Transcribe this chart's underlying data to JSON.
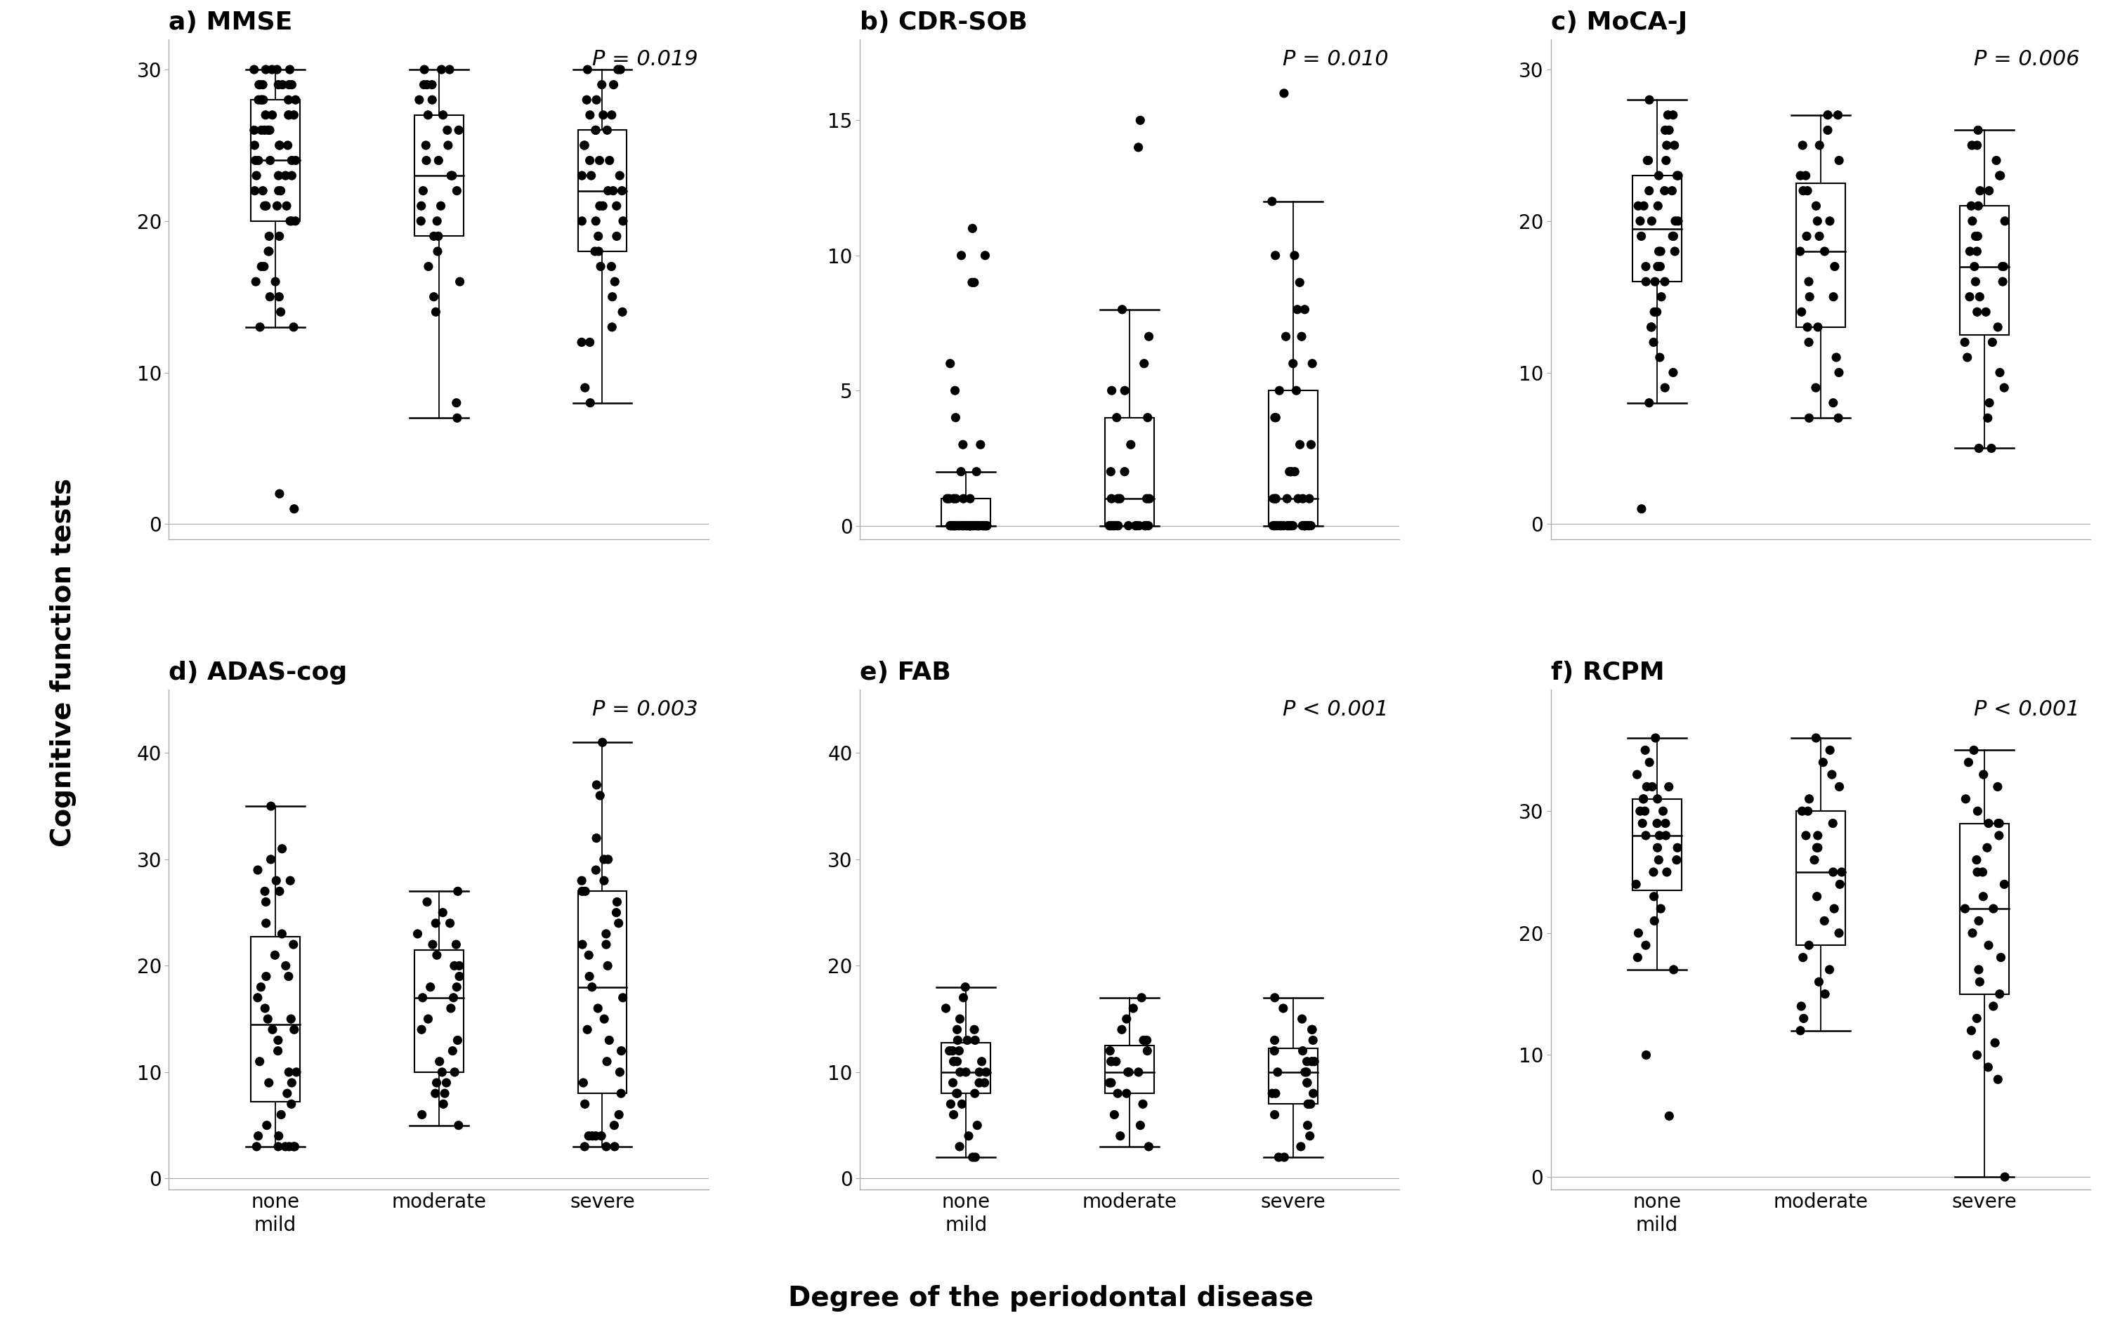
{
  "panels": [
    {
      "label": "a) MMSE",
      "pvalue": "P = 0.019",
      "ylim": [
        -1,
        32
      ],
      "yticks": [
        0,
        10,
        20,
        30
      ],
      "data_none_mild": [
        30,
        30,
        30,
        30,
        30,
        29,
        29,
        29,
        29,
        29,
        29,
        29,
        28,
        28,
        28,
        28,
        28,
        28,
        27,
        27,
        27,
        27,
        27,
        26,
        26,
        26,
        26,
        26,
        25,
        25,
        25,
        25,
        24,
        24,
        24,
        24,
        24,
        23,
        23,
        23,
        23,
        22,
        22,
        22,
        22,
        21,
        21,
        21,
        21,
        20,
        20,
        20,
        19,
        19,
        18,
        18,
        17,
        17,
        16,
        16,
        15,
        15,
        14,
        13,
        13,
        1,
        2
      ],
      "data_moderate": [
        30,
        30,
        30,
        29,
        29,
        29,
        28,
        28,
        27,
        27,
        26,
        26,
        25,
        25,
        24,
        24,
        23,
        23,
        22,
        22,
        21,
        21,
        20,
        20,
        19,
        19,
        18,
        17,
        16,
        15,
        14,
        8,
        7
      ],
      "data_severe": [
        30,
        30,
        30,
        29,
        29,
        28,
        28,
        27,
        27,
        27,
        26,
        26,
        26,
        25,
        25,
        24,
        24,
        24,
        23,
        23,
        23,
        22,
        22,
        22,
        21,
        21,
        21,
        20,
        20,
        20,
        19,
        19,
        18,
        18,
        17,
        17,
        16,
        15,
        14,
        13,
        12,
        12,
        9,
        8
      ]
    },
    {
      "label": "b) CDR-SOB",
      "pvalue": "P = 0.010",
      "ylim": [
        -0.5,
        18
      ],
      "yticks": [
        0,
        5,
        10,
        15
      ],
      "data_none_mild": [
        11,
        10,
        10,
        9,
        9,
        6,
        5,
        4,
        3,
        3,
        2,
        2,
        1,
        1,
        1,
        1,
        1,
        1,
        0,
        0,
        0,
        0,
        0,
        0,
        0,
        0,
        0,
        0,
        0,
        0,
        0,
        0,
        0,
        0,
        0,
        0,
        0,
        0,
        0,
        0,
        0,
        0,
        0,
        0,
        0,
        0,
        0,
        0,
        0,
        0,
        0,
        0,
        0,
        0,
        0,
        0,
        0,
        0,
        0,
        0
      ],
      "data_moderate": [
        15,
        14,
        8,
        7,
        6,
        5,
        5,
        4,
        4,
        3,
        2,
        2,
        1,
        1,
        1,
        1,
        1,
        0,
        0,
        0,
        0,
        0,
        0,
        0,
        0,
        0,
        0,
        0,
        0,
        0,
        0,
        0,
        0
      ],
      "data_severe": [
        16,
        12,
        10,
        10,
        9,
        8,
        8,
        7,
        7,
        6,
        6,
        5,
        5,
        4,
        4,
        3,
        3,
        2,
        2,
        2,
        2,
        1,
        1,
        1,
        1,
        1,
        1,
        1,
        0,
        0,
        0,
        0,
        0,
        0,
        0,
        0,
        0,
        0,
        0,
        0,
        0,
        0,
        0,
        0,
        0,
        0,
        0,
        0
      ]
    },
    {
      "label": "c) MoCA-J",
      "pvalue": "P = 0.006",
      "ylim": [
        -1,
        32
      ],
      "yticks": [
        0,
        10,
        20,
        30
      ],
      "data_none_mild": [
        28,
        27,
        27,
        26,
        26,
        25,
        25,
        24,
        24,
        24,
        23,
        23,
        23,
        22,
        22,
        22,
        21,
        21,
        21,
        20,
        20,
        20,
        20,
        19,
        19,
        19,
        18,
        18,
        18,
        17,
        17,
        17,
        16,
        16,
        16,
        15,
        14,
        14,
        13,
        13,
        12,
        11,
        10,
        9,
        8,
        1
      ],
      "data_moderate": [
        27,
        27,
        26,
        25,
        25,
        24,
        23,
        23,
        22,
        22,
        21,
        20,
        20,
        19,
        19,
        18,
        18,
        17,
        16,
        15,
        15,
        14,
        13,
        13,
        12,
        11,
        10,
        9,
        8,
        7,
        7
      ],
      "data_severe": [
        26,
        25,
        25,
        24,
        23,
        23,
        22,
        22,
        21,
        21,
        20,
        20,
        19,
        19,
        18,
        18,
        17,
        17,
        17,
        16,
        16,
        15,
        15,
        14,
        14,
        13,
        12,
        12,
        11,
        10,
        9,
        8,
        7,
        5,
        5
      ]
    },
    {
      "label": "d) ADAS-cog",
      "pvalue": "P = 0.003",
      "ylim": [
        -1,
        46
      ],
      "yticks": [
        0,
        10,
        20,
        30,
        40
      ],
      "data_none_mild": [
        35,
        31,
        30,
        29,
        28,
        28,
        27,
        27,
        26,
        24,
        23,
        22,
        21,
        20,
        19,
        19,
        18,
        17,
        16,
        15,
        15,
        14,
        14,
        13,
        12,
        11,
        10,
        10,
        9,
        9,
        8,
        7,
        6,
        5,
        4,
        4,
        3,
        3,
        3,
        3,
        3,
        3
      ],
      "data_moderate": [
        27,
        26,
        25,
        24,
        24,
        23,
        22,
        22,
        21,
        20,
        20,
        19,
        18,
        18,
        17,
        17,
        16,
        15,
        14,
        13,
        12,
        11,
        10,
        10,
        9,
        9,
        8,
        8,
        7,
        6,
        5
      ],
      "data_severe": [
        41,
        37,
        36,
        32,
        30,
        30,
        29,
        28,
        28,
        27,
        27,
        26,
        25,
        24,
        23,
        22,
        22,
        21,
        20,
        19,
        18,
        17,
        16,
        15,
        14,
        13,
        12,
        11,
        10,
        9,
        8,
        7,
        6,
        5,
        4,
        4,
        4,
        4,
        3,
        3,
        3
      ]
    },
    {
      "label": "e) FAB",
      "pvalue": "P < 0.001",
      "ylim": [
        -1,
        46
      ],
      "yticks": [
        0,
        10,
        20,
        30,
        40
      ],
      "data_none_mild": [
        18,
        17,
        16,
        15,
        14,
        14,
        13,
        13,
        13,
        12,
        12,
        12,
        11,
        11,
        11,
        11,
        10,
        10,
        10,
        10,
        9,
        9,
        9,
        8,
        8,
        8,
        7,
        7,
        6,
        5,
        4,
        3,
        2,
        2
      ],
      "data_moderate": [
        17,
        16,
        15,
        14,
        13,
        13,
        12,
        12,
        11,
        11,
        11,
        10,
        10,
        10,
        9,
        9,
        8,
        8,
        7,
        6,
        5,
        4,
        3
      ],
      "data_severe": [
        17,
        16,
        15,
        14,
        14,
        13,
        13,
        12,
        12,
        11,
        11,
        11,
        10,
        10,
        10,
        9,
        9,
        8,
        8,
        8,
        7,
        7,
        6,
        5,
        4,
        3,
        2,
        2
      ]
    },
    {
      "label": "f) RCPM",
      "pvalue": "P < 0.001",
      "ylim": [
        -1,
        40
      ],
      "yticks": [
        0,
        10,
        20,
        30
      ],
      "data_none_mild": [
        36,
        35,
        34,
        33,
        32,
        32,
        32,
        31,
        31,
        31,
        30,
        30,
        30,
        29,
        29,
        29,
        28,
        28,
        28,
        27,
        27,
        26,
        26,
        25,
        25,
        24,
        23,
        22,
        21,
        20,
        19,
        18,
        17,
        10,
        5
      ],
      "data_moderate": [
        36,
        35,
        34,
        33,
        32,
        31,
        30,
        30,
        29,
        28,
        28,
        27,
        27,
        26,
        25,
        25,
        24,
        23,
        22,
        21,
        20,
        19,
        18,
        17,
        16,
        15,
        14,
        13,
        12
      ],
      "data_severe": [
        35,
        34,
        33,
        32,
        31,
        30,
        29,
        29,
        29,
        28,
        27,
        26,
        25,
        25,
        24,
        23,
        22,
        22,
        21,
        20,
        19,
        18,
        17,
        16,
        15,
        14,
        13,
        12,
        11,
        10,
        9,
        8,
        0
      ]
    }
  ],
  "groups": [
    "none\nmild",
    "moderate",
    "severe"
  ],
  "xlabel": "Degree of the periodontal disease",
  "ylabel": "Cognitive function tests",
  "background_color": "#ffffff",
  "title_fontsize": 26,
  "pvalue_fontsize": 22,
  "tick_fontsize": 20,
  "xlabel_fontsize": 28,
  "ylabel_fontsize": 28
}
